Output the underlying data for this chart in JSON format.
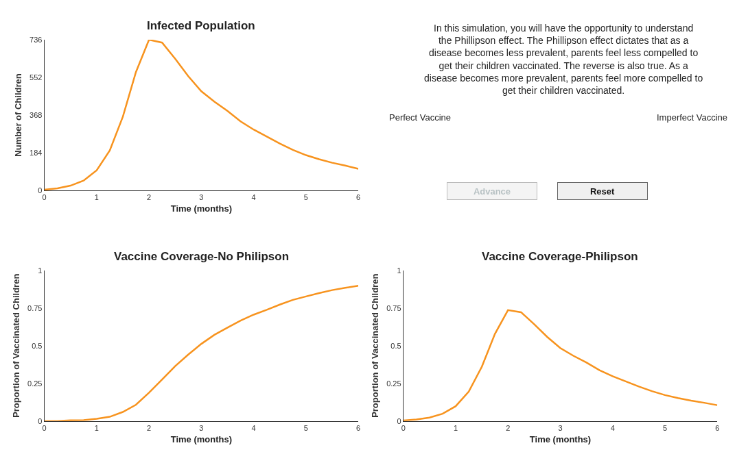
{
  "chart_data": [
    {
      "type": "line",
      "title": "Infected Population",
      "xlabel": "Time (months)",
      "ylabel": "Number of Children",
      "xlim": [
        0,
        6
      ],
      "xticks": [
        0,
        1,
        2,
        3,
        4,
        5,
        6
      ],
      "ylim": [
        0,
        736
      ],
      "yticks": [
        0,
        184,
        368,
        552,
        736
      ],
      "grid": false,
      "marker": "none",
      "line_style": "solid",
      "x": [
        0,
        0.25,
        0.5,
        0.75,
        1,
        1.25,
        1.5,
        1.75,
        2,
        2.25,
        2.5,
        2.75,
        3,
        3.25,
        3.5,
        3.75,
        4,
        4.25,
        4.5,
        4.75,
        5,
        5.25,
        5.5,
        5.75,
        6
      ],
      "series": [
        {
          "color": "#f7931e",
          "values": [
            3,
            10,
            23,
            48,
            98,
            195,
            360,
            578,
            736,
            722,
            643,
            558,
            484,
            433,
            388,
            337,
            297,
            263,
            229,
            198,
            172,
            152,
            135,
            121,
            105
          ]
        }
      ]
    },
    {
      "type": "other",
      "annotations": [
        "In this simulation, you will have the opportunity to understand the Phillipson effect. The Phillipson effect dictates that as a disease becomes less prevalent, parents feel less compelled to get their children vaccinated. The reverse is also true. As a disease becomes more prevalent, parents feel more compelled to get their children vaccinated.",
        "Perfect Vaccine",
        "Imperfect Vaccine",
        "Advance",
        "Reset"
      ]
    },
    {
      "type": "line",
      "title": "Vaccine Coverage-No Philipson",
      "xlabel": "Time (months)",
      "ylabel": "Proportion of Vaccinated Children",
      "xlim": [
        0,
        6
      ],
      "xticks": [
        0,
        1,
        2,
        3,
        4,
        5,
        6
      ],
      "ylim": [
        0,
        1
      ],
      "yticks": [
        0,
        0.25,
        0.5,
        0.75,
        1
      ],
      "grid": false,
      "marker": "none",
      "line_style": "solid",
      "x": [
        0,
        0.25,
        0.5,
        0.75,
        1,
        1.25,
        1.5,
        1.75,
        2,
        2.25,
        2.5,
        2.75,
        3,
        3.25,
        3.5,
        3.75,
        4,
        4.25,
        4.5,
        4.75,
        5,
        5.25,
        5.5,
        5.75,
        6
      ],
      "series": [
        {
          "color": "#f7931e",
          "values": [
            0,
            0,
            0.005,
            0.006,
            0.015,
            0.028,
            0.06,
            0.108,
            0.188,
            0.276,
            0.364,
            0.441,
            0.512,
            0.572,
            0.62,
            0.667,
            0.706,
            0.738,
            0.773,
            0.804,
            0.827,
            0.849,
            0.869,
            0.884,
            0.898
          ]
        }
      ]
    },
    {
      "type": "line",
      "title": "Vaccine Coverage-Philipson",
      "xlabel": "Time (months)",
      "ylabel": "Proportion of Vaccinated Children",
      "xlim": [
        0,
        6
      ],
      "xticks": [
        0,
        1,
        2,
        3,
        4,
        5,
        6
      ],
      "ylim": [
        0,
        1
      ],
      "yticks": [
        0,
        0.25,
        0.5,
        0.75,
        1
      ],
      "grid": false,
      "marker": "none",
      "line_style": "solid",
      "x": [
        0,
        0.25,
        0.5,
        0.75,
        1,
        1.25,
        1.5,
        1.75,
        2,
        2.25,
        2.5,
        2.75,
        3,
        3.25,
        3.5,
        3.75,
        4,
        4.25,
        4.5,
        4.75,
        5,
        5.25,
        5.5,
        5.75,
        6
      ],
      "series": [
        {
          "color": "#f7931e",
          "values": [
            0.003,
            0.01,
            0.023,
            0.048,
            0.098,
            0.195,
            0.36,
            0.578,
            0.736,
            0.722,
            0.643,
            0.558,
            0.484,
            0.433,
            0.388,
            0.337,
            0.297,
            0.263,
            0.229,
            0.198,
            0.172,
            0.152,
            0.135,
            0.121,
            0.105
          ]
        }
      ]
    }
  ]
}
